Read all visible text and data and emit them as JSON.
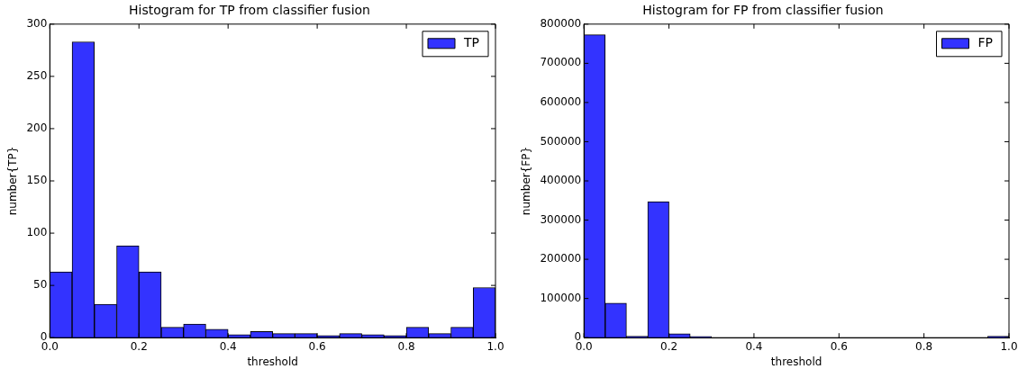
{
  "chart_data": [
    {
      "type": "histogram",
      "title": "Histogram for TP from classifier fusion",
      "xlabel": "threshold",
      "ylabel": "number{TP}",
      "bins": [
        0,
        0.05,
        0.1,
        0.15,
        0.2,
        0.25,
        0.3,
        0.35,
        0.4,
        0.45,
        0.5,
        0.55,
        0.6,
        0.65,
        0.7,
        0.75,
        0.8,
        0.85,
        0.9,
        0.95,
        1.0
      ],
      "series": [
        {
          "name": "TP",
          "color": "#3333ff",
          "values": [
            63,
            283,
            32,
            88,
            63,
            10,
            13,
            8,
            3,
            6,
            4,
            4,
            2,
            4,
            3,
            2,
            10,
            4,
            10,
            48
          ]
        }
      ],
      "xlim": [
        0,
        1
      ],
      "xticks": [
        {
          "value": 0,
          "label": "0.0"
        },
        {
          "value": 0.2,
          "label": "0.2"
        },
        {
          "value": 0.4,
          "label": "0.4"
        },
        {
          "value": 0.6,
          "label": "0.6"
        },
        {
          "value": 0.8,
          "label": "0.8"
        },
        {
          "value": 1,
          "label": "1.0"
        }
      ],
      "ylim": [
        0,
        300
      ],
      "yticks": [
        0,
        50,
        100,
        150,
        200,
        250,
        300
      ],
      "grid": false,
      "legend": "top right"
    },
    {
      "type": "histogram",
      "title": "Histogram for FP from classifier fusion",
      "xlabel": "threshold",
      "ylabel": "number{FP}",
      "bins": [
        0,
        0.05,
        0.1,
        0.15,
        0.2,
        0.25,
        0.3,
        0.35,
        0.4,
        0.45,
        0.5,
        0.55,
        0.6,
        0.65,
        0.7,
        0.75,
        0.8,
        0.85,
        0.9,
        0.95,
        1.0
      ],
      "series": [
        {
          "name": "FP",
          "color": "#3333ff",
          "values": [
            773000,
            88000,
            4000,
            347000,
            10000,
            3000,
            0,
            0,
            0,
            0,
            0,
            0,
            0,
            0,
            0,
            0,
            0,
            0,
            0,
            4000
          ]
        }
      ],
      "xlim": [
        0,
        1
      ],
      "xticks": [
        {
          "value": 0,
          "label": "0.0"
        },
        {
          "value": 0.2,
          "label": "0.2"
        },
        {
          "value": 0.4,
          "label": "0.4"
        },
        {
          "value": 0.6,
          "label": "0.6"
        },
        {
          "value": 0.8,
          "label": "0.8"
        },
        {
          "value": 1,
          "label": "1.0"
        }
      ],
      "ylim": [
        0,
        800000
      ],
      "yticks": [
        0,
        100000,
        200000,
        300000,
        400000,
        500000,
        600000,
        700000,
        800000
      ],
      "grid": false,
      "legend": "top right"
    }
  ]
}
